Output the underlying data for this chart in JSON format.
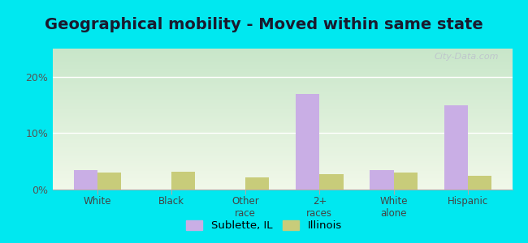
{
  "title": "Geographical mobility - Moved within same state",
  "categories": [
    "White",
    "Black",
    "Other\nrace",
    "2+\nraces",
    "White\nalone",
    "Hispanic"
  ],
  "sublette_values": [
    3.5,
    0.0,
    0.0,
    17.0,
    3.5,
    15.0
  ],
  "illinois_values": [
    3.0,
    3.2,
    2.2,
    2.8,
    3.0,
    2.5
  ],
  "sublette_color": "#c9aee5",
  "illinois_color": "#c8cc7a",
  "background_outer": "#00e8f0",
  "background_inner_top": "#c8e6c9",
  "background_inner_bottom": "#f1f8e9",
  "ylim": [
    0,
    25
  ],
  "yticks": [
    0,
    10,
    20
  ],
  "ytick_labels": [
    "0%",
    "10%",
    "20%"
  ],
  "grid_color": "#ffffff",
  "legend_label1": "Sublette, IL",
  "legend_label2": "Illinois",
  "bar_width": 0.32,
  "watermark": "City-Data.com",
  "title_fontsize": 14,
  "title_color": "#1a1a2e",
  "tick_label_color": "#444444",
  "ytick_color": "#555555"
}
